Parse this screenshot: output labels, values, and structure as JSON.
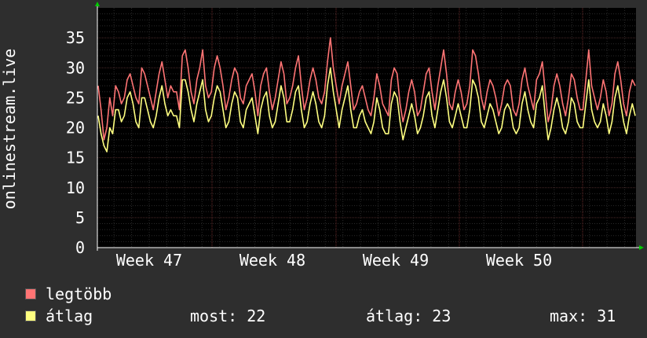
{
  "chart_data": {
    "type": "line",
    "ylabel": "onlinestream.live",
    "xlabel": "",
    "ylim": [
      0,
      40
    ],
    "yticks": [
      0,
      5,
      10,
      15,
      20,
      25,
      30,
      35
    ],
    "x_ticks": [
      "Week 47",
      "Week 48",
      "Week 49",
      "Week 50"
    ],
    "grid": true,
    "legend_position": "bottom-left",
    "series": [
      {
        "name": "legtöbb",
        "color": "#ff7474",
        "values": [
          27,
          23,
          18,
          20,
          25,
          22,
          27,
          26,
          24,
          25,
          28,
          29,
          27,
          25,
          24,
          30,
          29,
          27,
          25,
          23,
          26,
          29,
          31,
          28,
          25,
          27,
          26,
          26,
          23,
          32,
          33,
          30,
          26,
          24,
          28,
          30,
          33,
          27,
          25,
          26,
          30,
          32,
          30,
          27,
          23,
          25,
          28,
          30,
          29,
          25,
          24,
          27,
          28,
          29,
          26,
          22,
          27,
          29,
          30,
          26,
          23,
          25,
          28,
          31,
          29,
          24,
          25,
          27,
          30,
          32,
          27,
          23,
          25,
          28,
          30,
          28,
          25,
          24,
          26,
          31,
          35,
          30,
          27,
          24,
          27,
          29,
          31,
          27,
          23,
          24,
          26,
          27,
          25,
          23,
          22,
          25,
          29,
          27,
          24,
          23,
          22,
          28,
          30,
          29,
          24,
          21,
          23,
          26,
          28,
          26,
          22,
          23,
          26,
          29,
          30,
          26,
          23,
          27,
          30,
          33,
          29,
          24,
          23,
          26,
          28,
          26,
          23,
          24,
          27,
          33,
          32,
          29,
          25,
          23,
          26,
          28,
          27,
          25,
          22,
          24,
          27,
          28,
          27,
          23,
          22,
          24,
          28,
          30,
          27,
          25,
          23,
          28,
          29,
          31,
          26,
          21,
          23,
          27,
          29,
          27,
          24,
          22,
          25,
          29,
          28,
          25,
          23,
          23,
          28,
          33,
          27,
          25,
          23,
          25,
          28,
          26,
          22,
          24,
          29,
          31,
          28,
          24,
          22,
          26,
          28,
          27
        ]
      },
      {
        "name": "átlag",
        "color": "#ffff80",
        "values": [
          22,
          19,
          17,
          16,
          20,
          19,
          23,
          23,
          21,
          22,
          25,
          26,
          24,
          21,
          20,
          25,
          25,
          23,
          21,
          20,
          22,
          25,
          27,
          24,
          22,
          23,
          22,
          22,
          20,
          28,
          28,
          26,
          23,
          21,
          24,
          26,
          28,
          23,
          21,
          22,
          25,
          27,
          26,
          23,
          20,
          21,
          24,
          26,
          25,
          21,
          20,
          23,
          24,
          25,
          22,
          19,
          23,
          25,
          26,
          22,
          20,
          21,
          24,
          27,
          25,
          21,
          21,
          23,
          26,
          27,
          23,
          20,
          21,
          24,
          26,
          24,
          21,
          20,
          22,
          27,
          30,
          26,
          23,
          20,
          23,
          25,
          27,
          23,
          20,
          20,
          22,
          23,
          21,
          20,
          19,
          21,
          25,
          23,
          20,
          19,
          19,
          24,
          26,
          25,
          21,
          18,
          20,
          22,
          24,
          22,
          19,
          20,
          22,
          25,
          26,
          22,
          20,
          23,
          26,
          28,
          25,
          21,
          20,
          22,
          24,
          22,
          20,
          20,
          23,
          28,
          27,
          25,
          21,
          20,
          22,
          24,
          23,
          21,
          19,
          20,
          23,
          24,
          23,
          20,
          19,
          20,
          24,
          26,
          23,
          21,
          20,
          24,
          25,
          27,
          22,
          18,
          20,
          23,
          25,
          23,
          20,
          19,
          21,
          25,
          24,
          21,
          20,
          20,
          24,
          28,
          23,
          21,
          20,
          21,
          24,
          22,
          19,
          21,
          25,
          27,
          24,
          21,
          19,
          22,
          24,
          22
        ]
      }
    ]
  },
  "legend": [
    {
      "label": "legtöbb",
      "color": "#ff7474"
    },
    {
      "label": "átlag",
      "color": "#ffff80"
    }
  ],
  "stats": {
    "most": "most: 22",
    "atlag": "átlag: 23",
    "max": "max: 31"
  }
}
